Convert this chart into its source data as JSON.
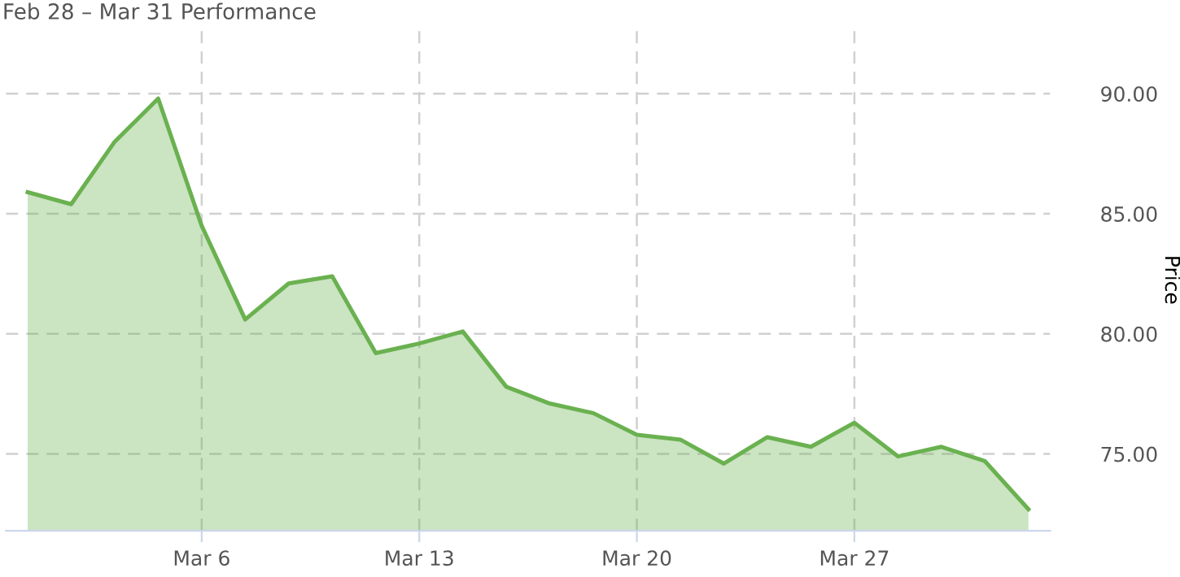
{
  "chart_data": {
    "type": "area",
    "title": "Feb 28 – Mar 31 Performance",
    "ylabel": "Price",
    "categories": [
      null,
      null,
      null,
      null,
      "Mar 6",
      null,
      null,
      null,
      null,
      "Mar 13",
      null,
      null,
      null,
      null,
      "Mar 20",
      null,
      null,
      null,
      null,
      "Mar 27",
      null,
      null,
      null,
      null
    ],
    "series": [
      {
        "color": "#6ab150",
        "values": [
          85.9,
          85.4,
          88.0,
          89.8,
          84.5,
          80.6,
          82.1,
          82.4,
          79.2,
          79.6,
          80.1,
          77.8,
          77.1,
          76.7,
          75.8,
          75.6,
          74.6,
          75.7,
          75.3,
          76.3,
          74.9,
          75.3,
          74.7,
          72.7
        ]
      }
    ],
    "ylim": [
      71.8,
      92.7
    ],
    "yticks": [
      {
        "value": 75,
        "label": "75.00"
      },
      {
        "value": 80,
        "label": "80.00"
      },
      {
        "value": 85,
        "label": "85.00"
      },
      {
        "value": 90,
        "label": "90.00"
      }
    ],
    "grid": true
  }
}
